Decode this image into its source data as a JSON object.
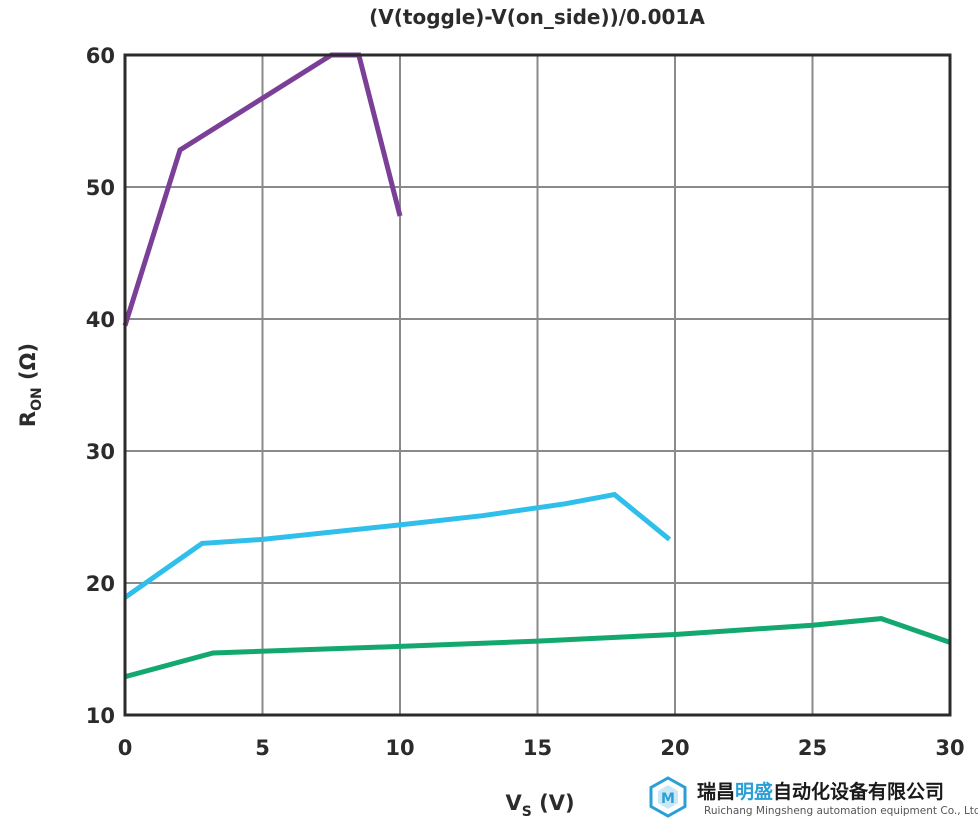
{
  "chart_data": {
    "type": "line",
    "title": "(V(toggle)-V(on_side))/0.001A",
    "xlabel": {
      "main": "V",
      "sub": "S",
      "tail": " (V)"
    },
    "ylabel": {
      "main": "R",
      "sub": "ON",
      "tail": " (Ω)"
    },
    "xlim": [
      0,
      30
    ],
    "ylim": [
      10,
      60
    ],
    "xticks": [
      0,
      5,
      10,
      15,
      20,
      25,
      30
    ],
    "yticks": [
      10,
      20,
      30,
      40,
      50,
      60
    ],
    "grid": true,
    "series": [
      {
        "color": "#7b3f98",
        "points": [
          [
            0,
            39.5
          ],
          [
            2,
            52.8
          ],
          [
            7.5,
            60
          ],
          [
            8.5,
            60
          ],
          [
            10,
            47.8
          ]
        ]
      },
      {
        "color": "#2fbfea",
        "points": [
          [
            0,
            18.9
          ],
          [
            2.8,
            23.0
          ],
          [
            5,
            23.3
          ],
          [
            10,
            24.4
          ],
          [
            13,
            25.1
          ],
          [
            16,
            26.0
          ],
          [
            17.8,
            26.7
          ],
          [
            19.8,
            23.3
          ]
        ]
      },
      {
        "color": "#12a86e",
        "points": [
          [
            0,
            12.9
          ],
          [
            3.2,
            14.7
          ],
          [
            10,
            15.2
          ],
          [
            15,
            15.6
          ],
          [
            20,
            16.1
          ],
          [
            25,
            16.8
          ],
          [
            27.5,
            17.3
          ],
          [
            30,
            15.5
          ]
        ]
      }
    ]
  },
  "watermark": {
    "name_cn_a": "瑞昌",
    "name_cn_b": "明盛",
    "name_cn_c": "自动化设备有限公司",
    "name_en": "Ruichang Mingsheng automation equipment Co., Ltd",
    "color_dark": "#1a1a1a",
    "color_accent": "#2a9fd6"
  }
}
